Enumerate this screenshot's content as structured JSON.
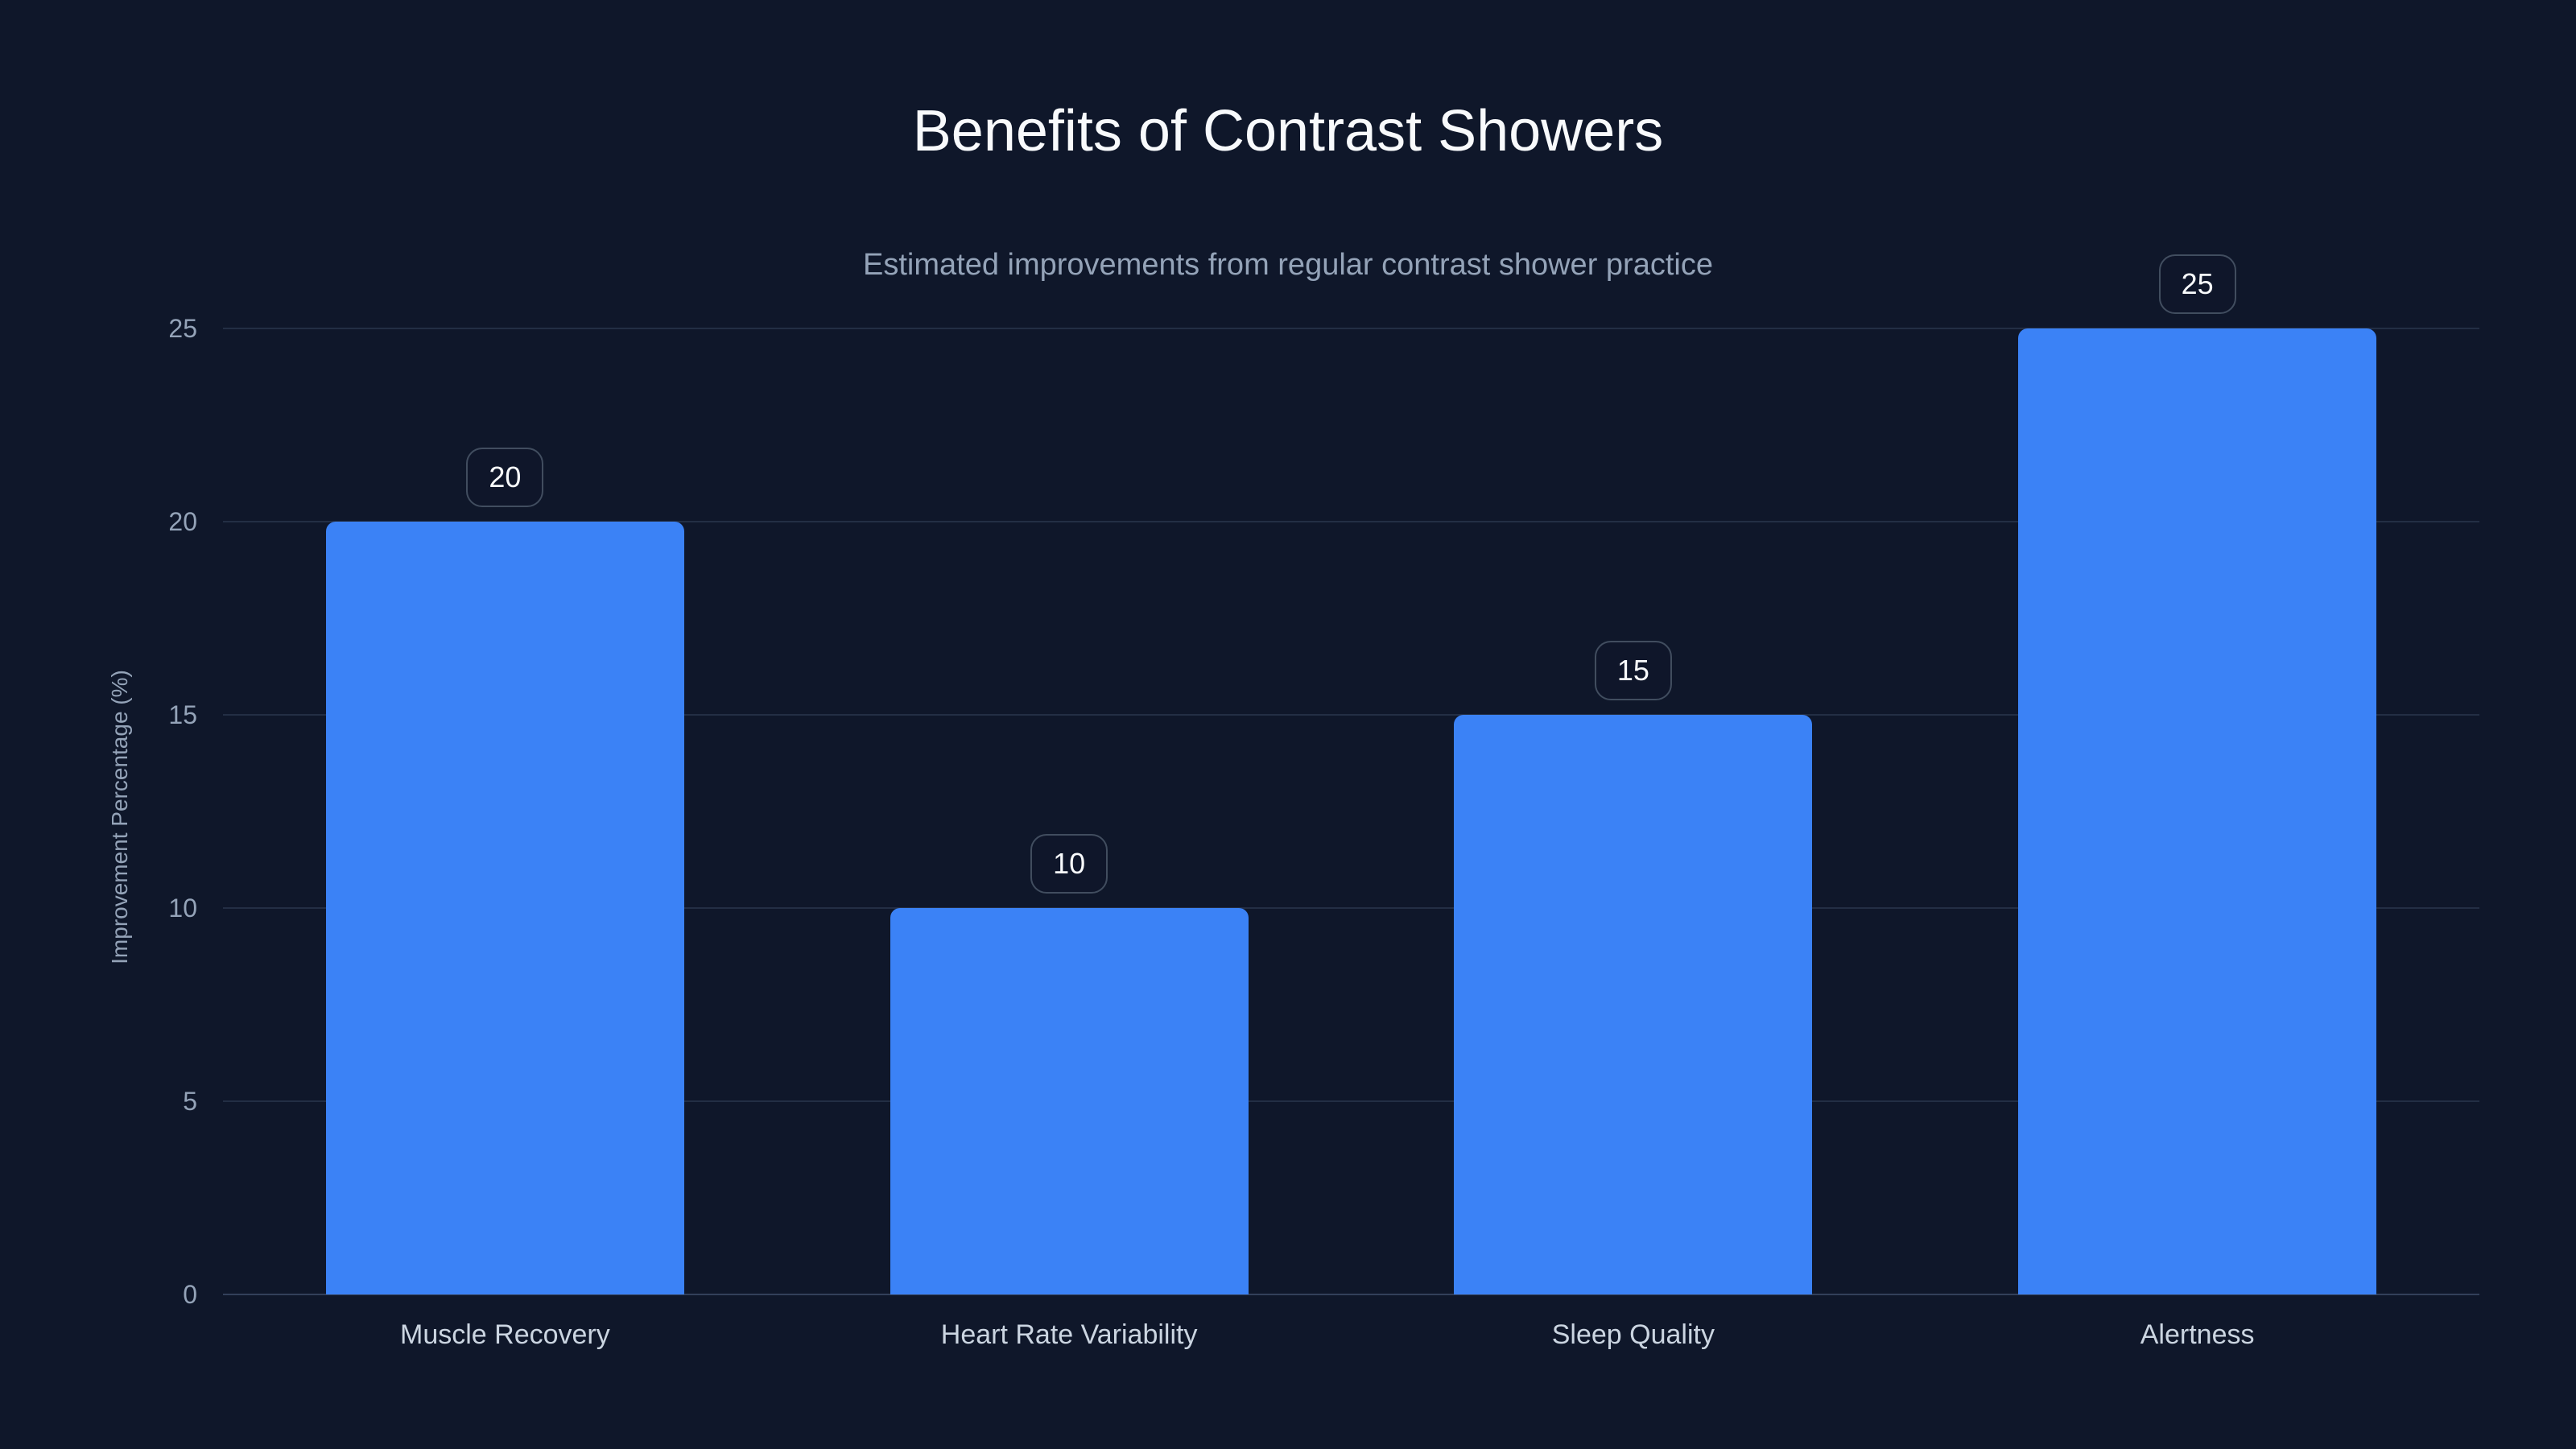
{
  "page": {
    "title": "Benefits of Contrast Showers",
    "subtitle": "Estimated improvements from regular contrast shower practice"
  },
  "colors": {
    "background": "#0f172a",
    "bar": "#3b82f6",
    "title_text": "#f8fafc",
    "subtitle_text": "#94a3b8",
    "tick_text": "#94a3b8",
    "category_text": "#cbd5e1",
    "gridline": "#232e44",
    "axis_line": "#33405a",
    "badge_border": "#414d5f",
    "badge_text": "#f8fafc"
  },
  "chart_data": {
    "type": "bar",
    "title": "Benefits of Contrast Showers",
    "subtitle": "Estimated improvements from regular contrast shower practice",
    "categories": [
      "Muscle Recovery",
      "Heart Rate Variability",
      "Sleep Quality",
      "Alertness"
    ],
    "values": [
      20,
      10,
      15,
      25
    ],
    "value_labels": [
      "20",
      "10",
      "15",
      "25"
    ],
    "xlabel": "",
    "ylabel": "Improvement Percentage (%)",
    "ylim": [
      0,
      25
    ],
    "yticks": [
      0,
      5,
      10,
      15,
      20,
      25
    ],
    "grid": "horizontal",
    "legend": "none",
    "bar_color": "#3b82f6"
  }
}
